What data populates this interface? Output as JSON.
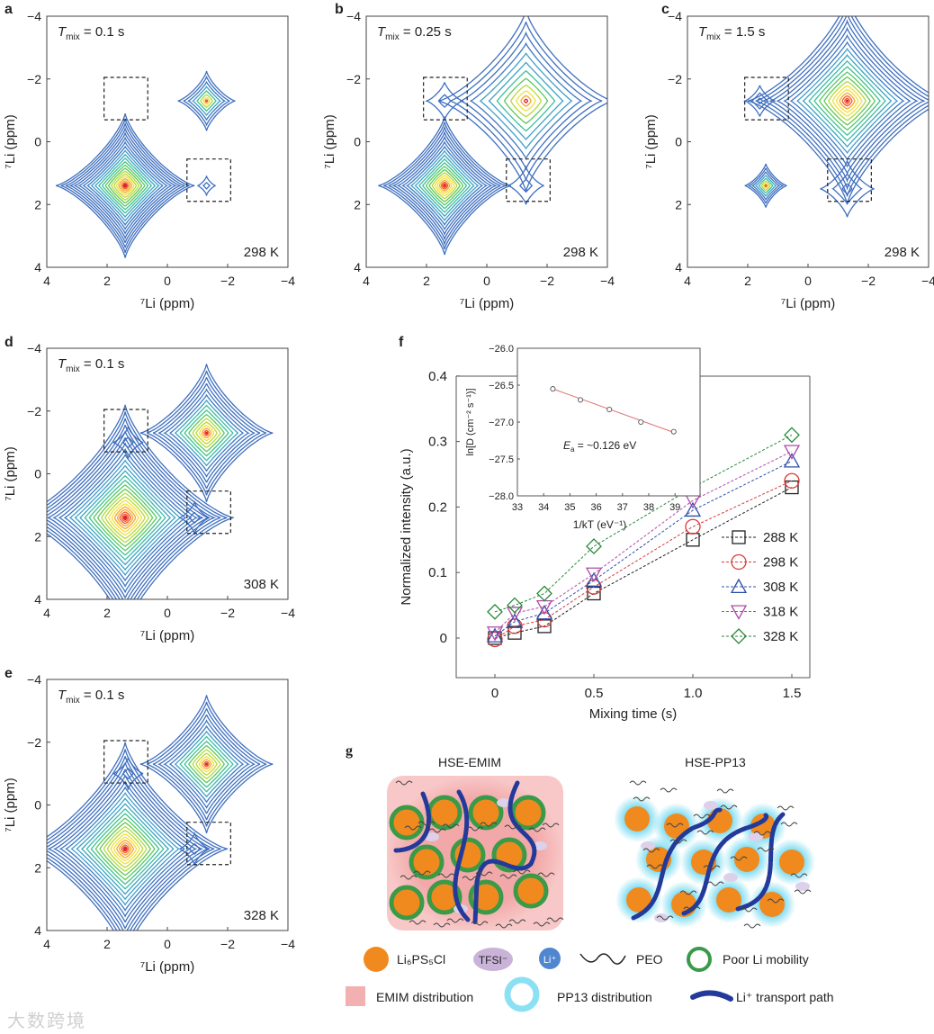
{
  "colors": {
    "contour": [
      "#3f6fbf",
      "#3f78c4",
      "#3fa0c8",
      "#3cbf9a",
      "#5cc85a",
      "#b5d83a",
      "#f0e03a",
      "#f6a52e",
      "#ef5a2a",
      "#e0202a"
    ],
    "s288": "#222222",
    "s298": "#d93a3a",
    "s308": "#2d4fa6",
    "s318": "#b04aa8",
    "s328": "#2a8a3a"
  },
  "chart_data": [
    {
      "type": "contour",
      "panel": "a",
      "title": "T_mix = 0.1 s",
      "tmix_T": "T",
      "tmix_sub": "mix",
      "tmix_val": " = 0.1 s",
      "temperature": "298 K",
      "xlabel": "⁷Li (ppm)",
      "ylabel": "⁷Li (ppm)",
      "xlim": [
        4,
        -4
      ],
      "ylim": [
        -4,
        4
      ],
      "ticks": [
        "4",
        "2",
        "0",
        "−2",
        "−4"
      ],
      "peaks": [
        {
          "cx": 1.4,
          "cy": 1.4,
          "r": 2.3,
          "levels": 22
        },
        {
          "cx": -1.3,
          "cy": -1.3,
          "r": 0.95,
          "levels": 8
        },
        {
          "cx": -1.3,
          "cy": 1.4,
          "r": 0.3,
          "levels": 2
        }
      ],
      "boxes": [
        [
          2.1,
          -2.05,
          0.65,
          -0.7
        ],
        [
          -0.65,
          0.55,
          -2.1,
          1.9
        ]
      ]
    },
    {
      "type": "contour",
      "panel": "b",
      "tmix_T": "T",
      "tmix_sub": "mix",
      "tmix_val": " = 0.25 s",
      "temperature": "298 K",
      "xlabel": "⁷Li (ppm)",
      "ylabel": "⁷Li (ppm)",
      "xlim": [
        4,
        -4
      ],
      "ylim": [
        -4,
        4
      ],
      "ticks": [
        "4",
        "2",
        "0",
        "−2",
        "−4"
      ],
      "peaks": [
        {
          "cx": 1.4,
          "cy": 1.4,
          "r": 2.2,
          "levels": 20
        },
        {
          "cx": -1.3,
          "cy": -1.3,
          "r": 2.9,
          "levels": 12
        },
        {
          "cx": -1.3,
          "cy": 1.4,
          "r": 0.6,
          "levels": 2
        },
        {
          "cx": 1.4,
          "cy": -1.3,
          "r": 0.6,
          "levels": 2
        }
      ],
      "boxes": [
        [
          2.1,
          -2.05,
          0.65,
          -0.7
        ],
        [
          -0.65,
          0.55,
          -2.1,
          1.9
        ]
      ]
    },
    {
      "type": "contour",
      "panel": "c",
      "tmix_T": "T",
      "tmix_sub": "mix",
      "tmix_val": " = 1.5 s",
      "temperature": "298 K",
      "xlabel": "⁷Li (ppm)",
      "ylabel": "⁷Li (ppm)",
      "xlim": [
        4,
        -4
      ],
      "ylim": [
        -4,
        4
      ],
      "ticks": [
        "4",
        "2",
        "0",
        "−2",
        "−4"
      ],
      "peaks": [
        {
          "cx": -1.3,
          "cy": -1.3,
          "r": 3.3,
          "levels": 20
        },
        {
          "cx": 1.4,
          "cy": 1.4,
          "r": 0.7,
          "levels": 8
        },
        {
          "cx": 1.6,
          "cy": -1.3,
          "r": 0.5,
          "levels": 3
        },
        {
          "cx": -1.3,
          "cy": 1.5,
          "r": 0.9,
          "levels": 3
        }
      ],
      "boxes": [
        [
          2.1,
          -2.05,
          0.65,
          -0.7
        ],
        [
          -0.65,
          0.55,
          -2.1,
          1.9
        ]
      ]
    },
    {
      "type": "contour",
      "panel": "d",
      "tmix_T": "T",
      "tmix_sub": "mix",
      "tmix_val": " = 0.1 s",
      "temperature": "308 K",
      "xlabel": "⁷Li (ppm)",
      "ylabel": "⁷Li (ppm)",
      "xlim": [
        4,
        -4
      ],
      "ylim": [
        -4,
        4
      ],
      "ticks": [
        "4",
        "2",
        "0",
        "−2",
        "−4"
      ],
      "peaks": [
        {
          "cx": 1.4,
          "cy": 1.4,
          "r": 3.6,
          "levels": 26
        },
        {
          "cx": -1.3,
          "cy": -1.3,
          "r": 2.2,
          "levels": 16
        },
        {
          "cx": -0.9,
          "cy": 1.4,
          "r": 0.5,
          "levels": 2
        },
        {
          "cx": 1.3,
          "cy": -1.0,
          "r": 0.5,
          "levels": 2
        }
      ],
      "boxes": [
        [
          2.1,
          -2.05,
          0.65,
          -0.7
        ],
        [
          -0.65,
          0.55,
          -2.1,
          1.9
        ]
      ]
    },
    {
      "type": "contour",
      "panel": "e",
      "tmix_T": "T",
      "tmix_sub": "mix",
      "tmix_val": " = 0.1 s",
      "temperature": "328 K",
      "xlabel": "⁷Li (ppm)",
      "ylabel": "⁷Li (ppm)",
      "xlim": [
        4,
        -4
      ],
      "ylim": [
        -4,
        4
      ],
      "ticks": [
        "4",
        "2",
        "0",
        "−2",
        "−4"
      ],
      "peaks": [
        {
          "cx": 1.4,
          "cy": 1.4,
          "r": 3.4,
          "levels": 24
        },
        {
          "cx": -1.3,
          "cy": -1.3,
          "r": 2.2,
          "levels": 16
        },
        {
          "cx": -0.9,
          "cy": 1.4,
          "r": 0.5,
          "levels": 2
        },
        {
          "cx": 1.3,
          "cy": -1.0,
          "r": 0.5,
          "levels": 2
        }
      ],
      "boxes": [
        [
          2.1,
          -2.05,
          0.65,
          -0.7
        ],
        [
          -0.65,
          0.55,
          -2.1,
          1.9
        ]
      ]
    },
    {
      "type": "scatter",
      "panel": "f",
      "xlabel": "Mixing time (s)",
      "ylabel": "Normalized intensity (a.u.)",
      "xlim": [
        -0.2,
        1.6
      ],
      "ylim": [
        -0.06,
        0.4
      ],
      "xticks": [
        "0",
        "0.5",
        "1.0",
        "1.5"
      ],
      "xtick_vals": [
        0,
        0.5,
        1.0,
        1.5
      ],
      "yticks": [
        "0",
        "0.1",
        "0.2",
        "0.3",
        "0.4"
      ],
      "ytick_vals": [
        0,
        0.1,
        0.2,
        0.3,
        0.4
      ],
      "x": [
        0,
        0.1,
        0.25,
        0.5,
        1.0,
        1.5
      ],
      "series": [
        {
          "name": "288 K",
          "marker": "square",
          "values": [
            0,
            0.008,
            0.018,
            0.068,
            0.15,
            0.23
          ]
        },
        {
          "name": "298 K",
          "marker": "circle",
          "values": [
            -0.002,
            0.018,
            0.028,
            0.078,
            0.17,
            0.24
          ]
        },
        {
          "name": "308 K",
          "marker": "triangle-up",
          "values": [
            0.003,
            0.025,
            0.038,
            0.088,
            0.195,
            0.27
          ]
        },
        {
          "name": "318 K",
          "marker": "triangle-down",
          "values": [
            0.008,
            0.038,
            0.048,
            0.098,
            0.21,
            0.285
          ]
        },
        {
          "name": "328 K",
          "marker": "diamond",
          "values": [
            0.04,
            0.05,
            0.068,
            0.14,
            0.23,
            0.31
          ]
        }
      ],
      "legend": "right",
      "inset": {
        "type": "line",
        "xlabel": "1/kT (eV⁻¹)",
        "ylabel": "ln[D (cm⁻² s⁻¹)]",
        "xlim": [
          33,
          40
        ],
        "ylim": [
          -28,
          -26
        ],
        "xticks": [
          "33",
          "34",
          "35",
          "36",
          "37",
          "38",
          "39"
        ],
        "xtick_vals": [
          33,
          34,
          35,
          36,
          37,
          38,
          39
        ],
        "yticks": [
          "−26.0",
          "−26.5",
          "−27.0",
          "−27.5",
          "−28.0"
        ],
        "ytick_vals": [
          -26,
          -26.5,
          -27,
          -27.5,
          -28
        ],
        "x": [
          34.35,
          35.4,
          36.5,
          37.7,
          38.95
        ],
        "y": [
          -26.55,
          -26.7,
          -26.83,
          -27.0,
          -27.13
        ],
        "annotation_E": "E",
        "annotation_sub": "a",
        "annotation_val": " = ~0.126 eV"
      }
    }
  ],
  "panels": {
    "a": "a",
    "b": "b",
    "c": "c",
    "d": "d",
    "e": "e",
    "f": "f",
    "g": "g"
  },
  "schematic": {
    "left_title": "HSE-EMIM",
    "right_title": "HSE-PP13",
    "legend": {
      "lps": "Li₆PS₅Cl",
      "tfsi": "TFSI⁻",
      "li": "Li⁺",
      "peo": "PEO",
      "poor": "Poor Li mobility",
      "emim": "EMIM distribution",
      "pp13": "PP13 distribution",
      "path": "Li⁺ transport path"
    }
  },
  "watermark": "大数跨境"
}
